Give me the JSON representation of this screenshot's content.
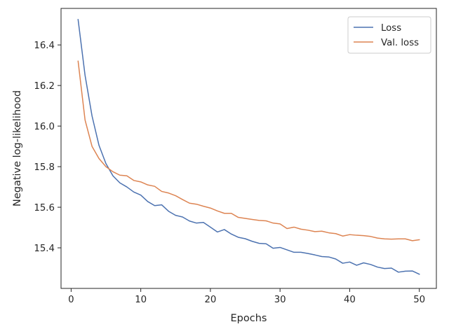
{
  "chart_data": {
    "type": "line",
    "xlabel": "Epochs",
    "ylabel": "Negative log-likelihood",
    "xlim": [
      -1.45,
      52.45
    ],
    "ylim": [
      15.2,
      16.58
    ],
    "xticks": [
      0,
      10,
      20,
      30,
      40,
      50
    ],
    "yticks": [
      15.4,
      15.6,
      15.8,
      16.0,
      16.2,
      16.4
    ],
    "grid": false,
    "legend_position": "top-right",
    "x": [
      1,
      2,
      3,
      4,
      5,
      6,
      7,
      8,
      9,
      10,
      11,
      12,
      13,
      14,
      15,
      16,
      17,
      18,
      19,
      20,
      21,
      22,
      23,
      24,
      25,
      26,
      27,
      28,
      29,
      30,
      31,
      32,
      33,
      34,
      35,
      36,
      37,
      38,
      39,
      40,
      41,
      42,
      43,
      44,
      45,
      46,
      47,
      48,
      49,
      50
    ],
    "series": [
      {
        "name": "Loss",
        "color": "#4c72b0",
        "values": [
          16.525,
          16.25,
          16.05,
          15.905,
          15.815,
          15.755,
          15.72,
          15.7,
          15.675,
          15.66,
          15.628,
          15.608,
          15.612,
          15.58,
          15.56,
          15.552,
          15.532,
          15.522,
          15.525,
          15.502,
          15.478,
          15.49,
          15.468,
          15.452,
          15.445,
          15.432,
          15.422,
          15.42,
          15.398,
          15.402,
          15.39,
          15.378,
          15.378,
          15.372,
          15.365,
          15.357,
          15.355,
          15.345,
          15.324,
          15.33,
          15.314,
          15.326,
          15.318,
          15.305,
          15.298,
          15.3,
          15.28,
          15.285,
          15.286,
          15.27
        ]
      },
      {
        "name": "Val. loss",
        "color": "#dd8452",
        "values": [
          16.32,
          16.03,
          15.9,
          15.84,
          15.8,
          15.775,
          15.758,
          15.755,
          15.732,
          15.725,
          15.71,
          15.703,
          15.678,
          15.67,
          15.657,
          15.638,
          15.62,
          15.615,
          15.605,
          15.596,
          15.582,
          15.57,
          15.57,
          15.55,
          15.545,
          15.54,
          15.535,
          15.533,
          15.522,
          15.518,
          15.495,
          15.502,
          15.492,
          15.487,
          15.48,
          15.482,
          15.474,
          15.47,
          15.458,
          15.465,
          15.462,
          15.46,
          15.456,
          15.448,
          15.444,
          15.443,
          15.444,
          15.444,
          15.435,
          15.44
        ]
      }
    ]
  }
}
